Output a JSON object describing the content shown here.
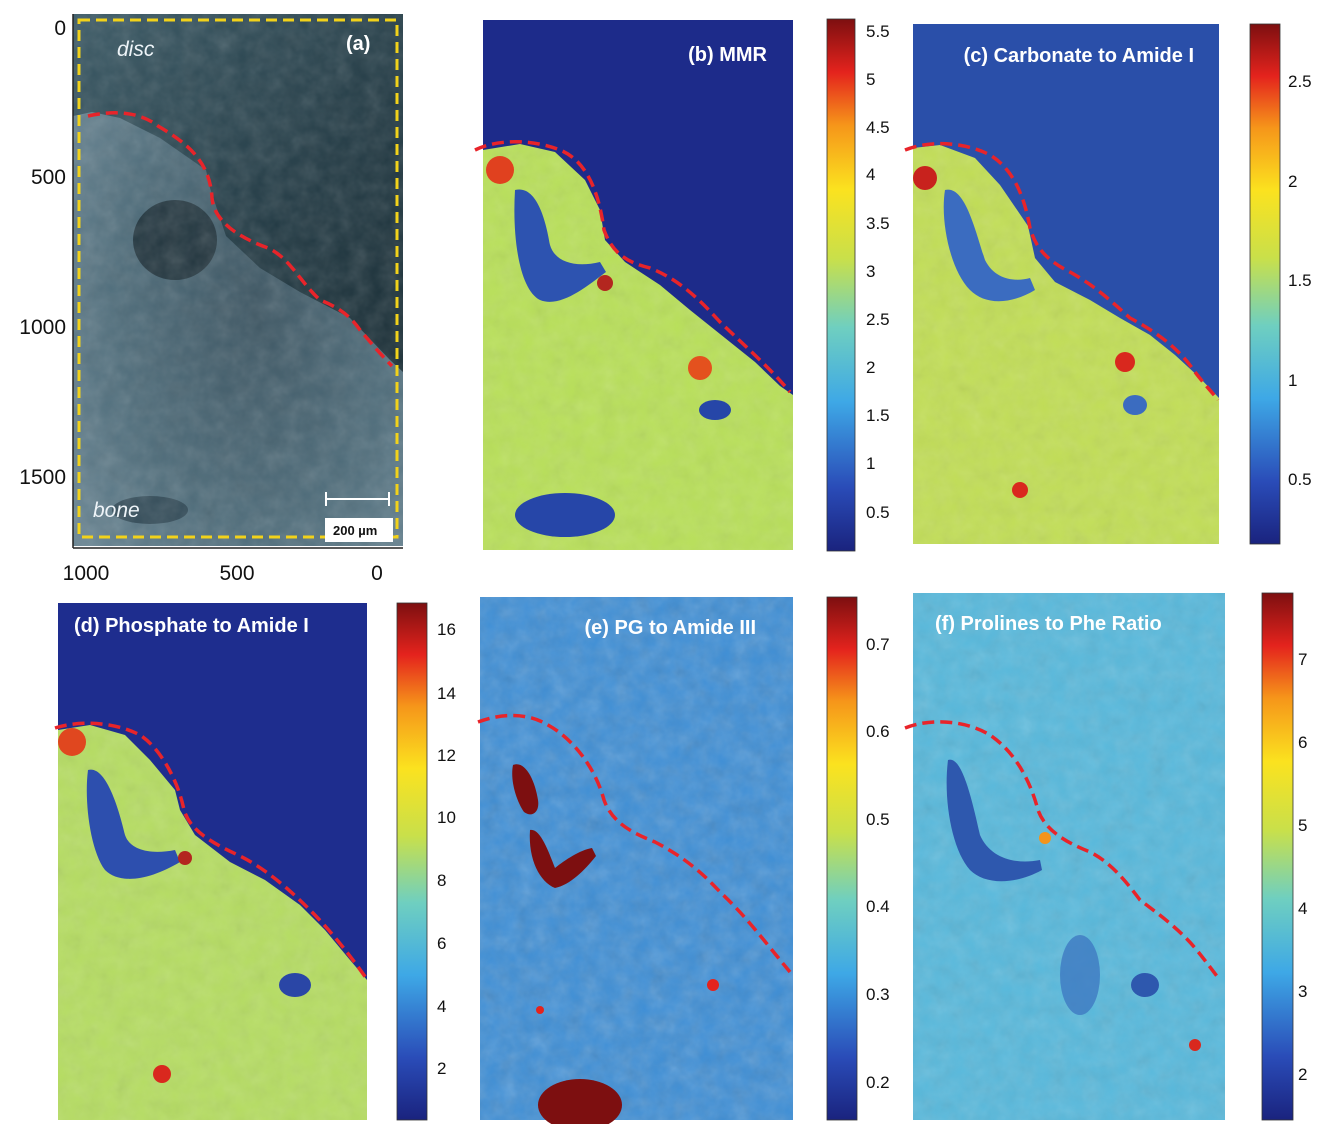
{
  "panel_a": {
    "label": "(a)",
    "region_top": "disc",
    "region_bottom": "bone",
    "scale_bar": "200 µm",
    "y_ticks": [
      "0",
      "500",
      "1000",
      "1500"
    ],
    "x_ticks": [
      "1000",
      "500",
      "0"
    ]
  },
  "panels": [
    {
      "id": "b",
      "title": "(b) MMR",
      "colorbar_ticks": [
        "5.5",
        "5",
        "4.5",
        "4",
        "3.5",
        "3",
        "2.5",
        "2",
        "1.5",
        "1",
        "0.5"
      ]
    },
    {
      "id": "c",
      "title": "(c) Carbonate to Amide I",
      "colorbar_ticks": [
        "2.5",
        "2",
        "1.5",
        "1",
        "0.5"
      ]
    },
    {
      "id": "d",
      "title": "(d) Phosphate to Amide I",
      "colorbar_ticks": [
        "16",
        "14",
        "12",
        "10",
        "8",
        "6",
        "4",
        "2"
      ]
    },
    {
      "id": "e",
      "title": "(e) PG to Amide III",
      "colorbar_ticks": [
        "0.7",
        "0.6",
        "0.5",
        "0.4",
        "0.3",
        "0.2"
      ]
    },
    {
      "id": "f",
      "title": "(f) Prolines to Phe Ratio",
      "colorbar_ticks": [
        "7",
        "6",
        "5",
        "4",
        "3",
        "2"
      ]
    }
  ],
  "colors": {
    "boundary": "#e8242a",
    "roi_box": "#f2d21a",
    "jet_low": "#1b2a8c",
    "jet_high": "#7a0a0a"
  }
}
